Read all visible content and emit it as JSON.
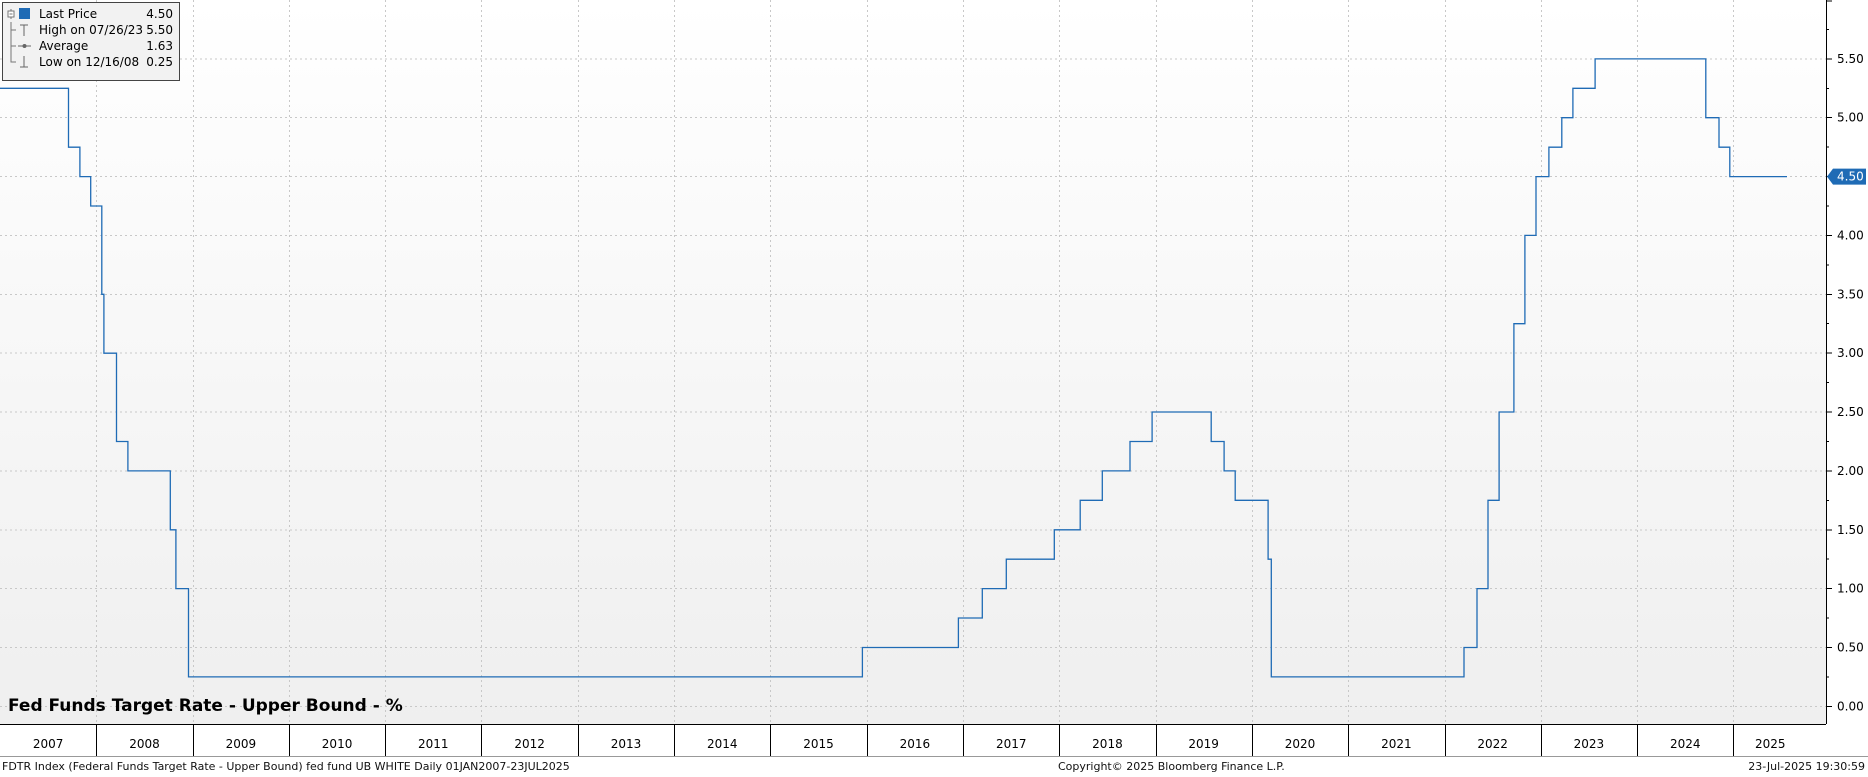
{
  "chart_data": {
    "type": "line",
    "title": "Fed Funds Target Rate - Upper Bound - %",
    "x_axis": {
      "tick_labels": [
        "2007",
        "2008",
        "2009",
        "2010",
        "2011",
        "2012",
        "2013",
        "2014",
        "2015",
        "2016",
        "2017",
        "2018",
        "2019",
        "2020",
        "2021",
        "2022",
        "2023",
        "2024",
        "2025"
      ],
      "range": [
        "2007-01-01",
        "2025-07-23"
      ]
    },
    "y_axis": {
      "tick_labels": [
        "0.00",
        "0.50",
        "1.00",
        "1.50",
        "2.00",
        "2.50",
        "3.00",
        "3.50",
        "4.00",
        "4.50",
        "5.00",
        "5.50"
      ],
      "range": [
        -0.15,
        6.0
      ],
      "side": "right"
    },
    "grid": true,
    "line_color": "#1f6bb5",
    "last_price_label": "4.50",
    "series": [
      {
        "name": "Last Price",
        "points": [
          [
            "2007-01-01",
            5.25
          ],
          [
            "2007-09-18",
            4.75
          ],
          [
            "2007-10-31",
            4.5
          ],
          [
            "2007-12-11",
            4.25
          ],
          [
            "2008-01-22",
            3.5
          ],
          [
            "2008-01-30",
            3.0
          ],
          [
            "2008-03-18",
            2.25
          ],
          [
            "2008-04-30",
            2.0
          ],
          [
            "2008-10-08",
            1.5
          ],
          [
            "2008-10-29",
            1.0
          ],
          [
            "2008-12-16",
            0.25
          ],
          [
            "2015-12-16",
            0.5
          ],
          [
            "2016-12-14",
            0.75
          ],
          [
            "2017-03-15",
            1.0
          ],
          [
            "2017-06-14",
            1.25
          ],
          [
            "2017-12-13",
            1.5
          ],
          [
            "2018-03-21",
            1.75
          ],
          [
            "2018-06-13",
            2.0
          ],
          [
            "2018-09-26",
            2.25
          ],
          [
            "2018-12-19",
            2.5
          ],
          [
            "2019-07-31",
            2.25
          ],
          [
            "2019-09-18",
            2.0
          ],
          [
            "2019-10-30",
            1.75
          ],
          [
            "2020-03-03",
            1.25
          ],
          [
            "2020-03-15",
            0.25
          ],
          [
            "2022-03-16",
            0.5
          ],
          [
            "2022-05-04",
            1.0
          ],
          [
            "2022-06-15",
            1.75
          ],
          [
            "2022-07-27",
            2.5
          ],
          [
            "2022-09-21",
            3.25
          ],
          [
            "2022-11-02",
            4.0
          ],
          [
            "2022-12-14",
            4.5
          ],
          [
            "2023-02-01",
            4.75
          ],
          [
            "2023-03-22",
            5.0
          ],
          [
            "2023-05-03",
            5.25
          ],
          [
            "2023-07-26",
            5.5
          ],
          [
            "2024-09-18",
            5.0
          ],
          [
            "2024-11-07",
            4.75
          ],
          [
            "2024-12-18",
            4.5
          ],
          [
            "2025-07-23",
            4.5
          ]
        ]
      }
    ]
  },
  "legend": {
    "items": [
      {
        "label": "Last Price",
        "value": "4.50"
      },
      {
        "label": "High on 07/26/23",
        "value": "5.50"
      },
      {
        "label": "Average",
        "value": "1.63"
      },
      {
        "label": "Low on 12/16/08",
        "value": "0.25"
      }
    ]
  },
  "footer": {
    "left": "FDTR Index (Federal Funds Target Rate - Upper Bound) fed fund UB WHITE  Daily 01JAN2007-23JUL2025",
    "copyright": "Copyright© 2025 Bloomberg Finance L.P.",
    "timestamp": "23-Jul-2025 19:30:59"
  }
}
